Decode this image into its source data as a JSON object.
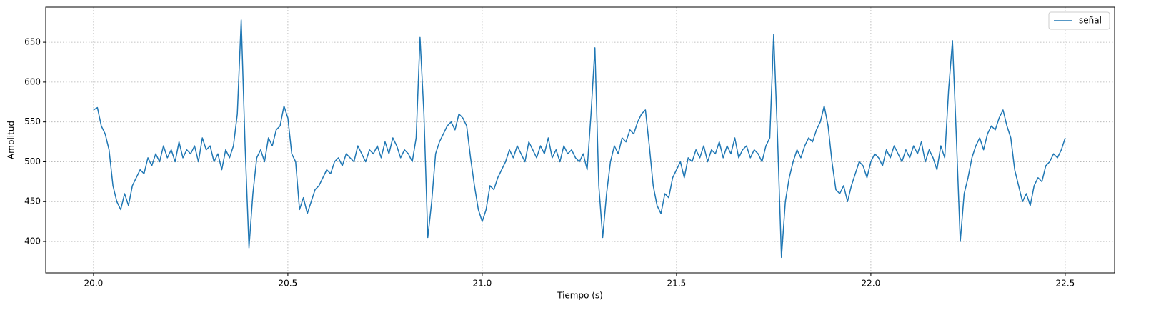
{
  "chart_data": {
    "type": "line",
    "xlabel": "Tiempo (s)",
    "ylabel": "Amplitud",
    "x": [
      20.0,
      20.01,
      20.02,
      20.03,
      20.04,
      20.05,
      20.06,
      20.07,
      20.08,
      20.09,
      20.1,
      20.11,
      20.12,
      20.13,
      20.14,
      20.15,
      20.16,
      20.17,
      20.18,
      20.19,
      20.2,
      20.21,
      20.22,
      20.23,
      20.24,
      20.25,
      20.26,
      20.27,
      20.28,
      20.29,
      20.3,
      20.31,
      20.32,
      20.33,
      20.34,
      20.35,
      20.36,
      20.37,
      20.38,
      20.39,
      20.4,
      20.41,
      20.42,
      20.43,
      20.44,
      20.45,
      20.46,
      20.47,
      20.48,
      20.49,
      20.5,
      20.51,
      20.52,
      20.53,
      20.54,
      20.55,
      20.56,
      20.57,
      20.58,
      20.59,
      20.6,
      20.61,
      20.62,
      20.63,
      20.64,
      20.65,
      20.66,
      20.67,
      20.68,
      20.69,
      20.7,
      20.71,
      20.72,
      20.73,
      20.74,
      20.75,
      20.76,
      20.77,
      20.78,
      20.79,
      20.8,
      20.81,
      20.82,
      20.83,
      20.84,
      20.85,
      20.86,
      20.87,
      20.88,
      20.89,
      20.9,
      20.91,
      20.92,
      20.93,
      20.94,
      20.95,
      20.96,
      20.97,
      20.98,
      20.99,
      21.0,
      21.01,
      21.02,
      21.03,
      21.04,
      21.05,
      21.06,
      21.07,
      21.08,
      21.09,
      21.1,
      21.11,
      21.12,
      21.13,
      21.14,
      21.15,
      21.16,
      21.17,
      21.18,
      21.19,
      21.2,
      21.21,
      21.22,
      21.23,
      21.24,
      21.25,
      21.26,
      21.27,
      21.28,
      21.29,
      21.3,
      21.31,
      21.32,
      21.33,
      21.34,
      21.35,
      21.36,
      21.37,
      21.38,
      21.39,
      21.4,
      21.41,
      21.42,
      21.43,
      21.44,
      21.45,
      21.46,
      21.47,
      21.48,
      21.49,
      21.5,
      21.51,
      21.52,
      21.53,
      21.54,
      21.55,
      21.56,
      21.57,
      21.58,
      21.59,
      21.6,
      21.61,
      21.62,
      21.63,
      21.64,
      21.65,
      21.66,
      21.67,
      21.68,
      21.69,
      21.7,
      21.71,
      21.72,
      21.73,
      21.74,
      21.75,
      21.76,
      21.77,
      21.78,
      21.79,
      21.8,
      21.81,
      21.82,
      21.83,
      21.84,
      21.85,
      21.86,
      21.87,
      21.88,
      21.89,
      21.9,
      21.91,
      21.92,
      21.93,
      21.94,
      21.95,
      21.96,
      21.97,
      21.98,
      21.99,
      22.0,
      22.01,
      22.02,
      22.03,
      22.04,
      22.05,
      22.06,
      22.07,
      22.08,
      22.09,
      22.1,
      22.11,
      22.12,
      22.13,
      22.14,
      22.15,
      22.16,
      22.17,
      22.18,
      22.19,
      22.2,
      22.21,
      22.22,
      22.23,
      22.24,
      22.25,
      22.26,
      22.27,
      22.28,
      22.29,
      22.3,
      22.31,
      22.32,
      22.33,
      22.34,
      22.35,
      22.36,
      22.37,
      22.38,
      22.39,
      22.4,
      22.41,
      22.42,
      22.43,
      22.44,
      22.45,
      22.46,
      22.47,
      22.48,
      22.49,
      22.5
    ],
    "series": [
      {
        "name": "señal",
        "color": "#1f77b4",
        "values": [
          565,
          568,
          545,
          535,
          515,
          470,
          450,
          440,
          460,
          445,
          470,
          480,
          490,
          485,
          505,
          495,
          510,
          500,
          520,
          505,
          515,
          500,
          525,
          505,
          515,
          510,
          520,
          500,
          530,
          515,
          520,
          500,
          510,
          490,
          515,
          505,
          520,
          560,
          678,
          520,
          392,
          460,
          505,
          515,
          500,
          530,
          520,
          540,
          545,
          570,
          555,
          510,
          500,
          440,
          455,
          435,
          450,
          465,
          470,
          480,
          490,
          485,
          500,
          505,
          495,
          510,
          505,
          500,
          520,
          510,
          500,
          515,
          510,
          520,
          505,
          525,
          510,
          530,
          520,
          505,
          515,
          510,
          500,
          530,
          656,
          560,
          405,
          450,
          510,
          525,
          535,
          545,
          550,
          540,
          560,
          555,
          545,
          505,
          470,
          440,
          425,
          440,
          470,
          465,
          480,
          490,
          500,
          515,
          505,
          520,
          510,
          500,
          525,
          515,
          505,
          520,
          510,
          530,
          505,
          515,
          500,
          520,
          510,
          515,
          505,
          500,
          510,
          490,
          560,
          643,
          470,
          405,
          460,
          500,
          520,
          510,
          530,
          525,
          540,
          535,
          550,
          560,
          565,
          520,
          470,
          445,
          435,
          460,
          455,
          480,
          490,
          500,
          480,
          505,
          500,
          515,
          505,
          520,
          500,
          515,
          510,
          525,
          505,
          520,
          510,
          530,
          505,
          515,
          520,
          505,
          515,
          510,
          500,
          520,
          530,
          660,
          530,
          380,
          450,
          480,
          500,
          515,
          505,
          520,
          530,
          525,
          540,
          550,
          570,
          545,
          500,
          465,
          460,
          470,
          450,
          470,
          485,
          500,
          495,
          480,
          500,
          510,
          505,
          495,
          515,
          505,
          520,
          510,
          500,
          515,
          505,
          520,
          510,
          525,
          500,
          515,
          505,
          490,
          520,
          505,
          590,
          652,
          530,
          400,
          460,
          480,
          505,
          520,
          530,
          515,
          535,
          545,
          540,
          555,
          565,
          545,
          530,
          490,
          470,
          450,
          460,
          445,
          470,
          480,
          475,
          495,
          500,
          510,
          505,
          515,
          530
        ]
      }
    ],
    "xlim": [
      19.877,
      22.627
    ],
    "ylim": [
      360.6,
      694
    ],
    "xticks": [
      {
        "value": 20,
        "label": "20.0"
      },
      20.5,
      {
        "value": 21,
        "label": "21.0"
      },
      21.5,
      {
        "value": 22,
        "label": "22.0"
      },
      22.5
    ],
    "yticks": [
      400,
      450,
      500,
      550,
      600,
      650
    ],
    "grid": true,
    "legend": "upper right"
  }
}
